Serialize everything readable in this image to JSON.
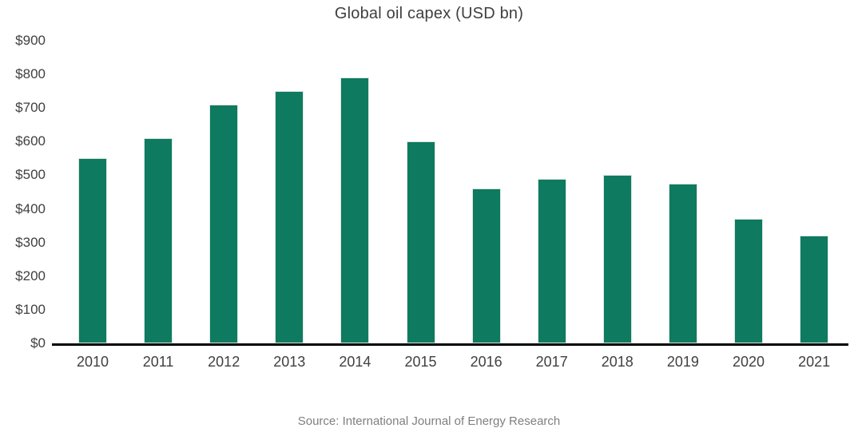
{
  "title": "Global oil capex (USD bn)",
  "source_caption": "Source: International Journal of Energy Research",
  "colors": {
    "bar": "#0E7A5F",
    "bar_border": "#DCE8E3",
    "axis_line": "#000000",
    "tick_label": "#404040",
    "title_text": "#3F3F3F",
    "source_text": "#7F7F7F"
  },
  "chart_data": {
    "type": "bar",
    "title": "Global oil capex (USD bn)",
    "categories": [
      "2010",
      "2011",
      "2012",
      "2013",
      "2014",
      "2015",
      "2016",
      "2017",
      "2018",
      "2019",
      "2020",
      "2021"
    ],
    "values": [
      550,
      610,
      710,
      750,
      790,
      600,
      460,
      490,
      500,
      475,
      370,
      320
    ],
    "xlabel": "",
    "ylabel": "",
    "ylim": [
      0,
      900
    ],
    "y_tick_step": 100,
    "y_tick_labels": [
      "$0",
      "$100",
      "$200",
      "$300",
      "$400",
      "$500",
      "$600",
      "$700",
      "$800",
      "$900"
    ],
    "grid": false,
    "legend": false,
    "bar_color": "#0E7A5F"
  }
}
